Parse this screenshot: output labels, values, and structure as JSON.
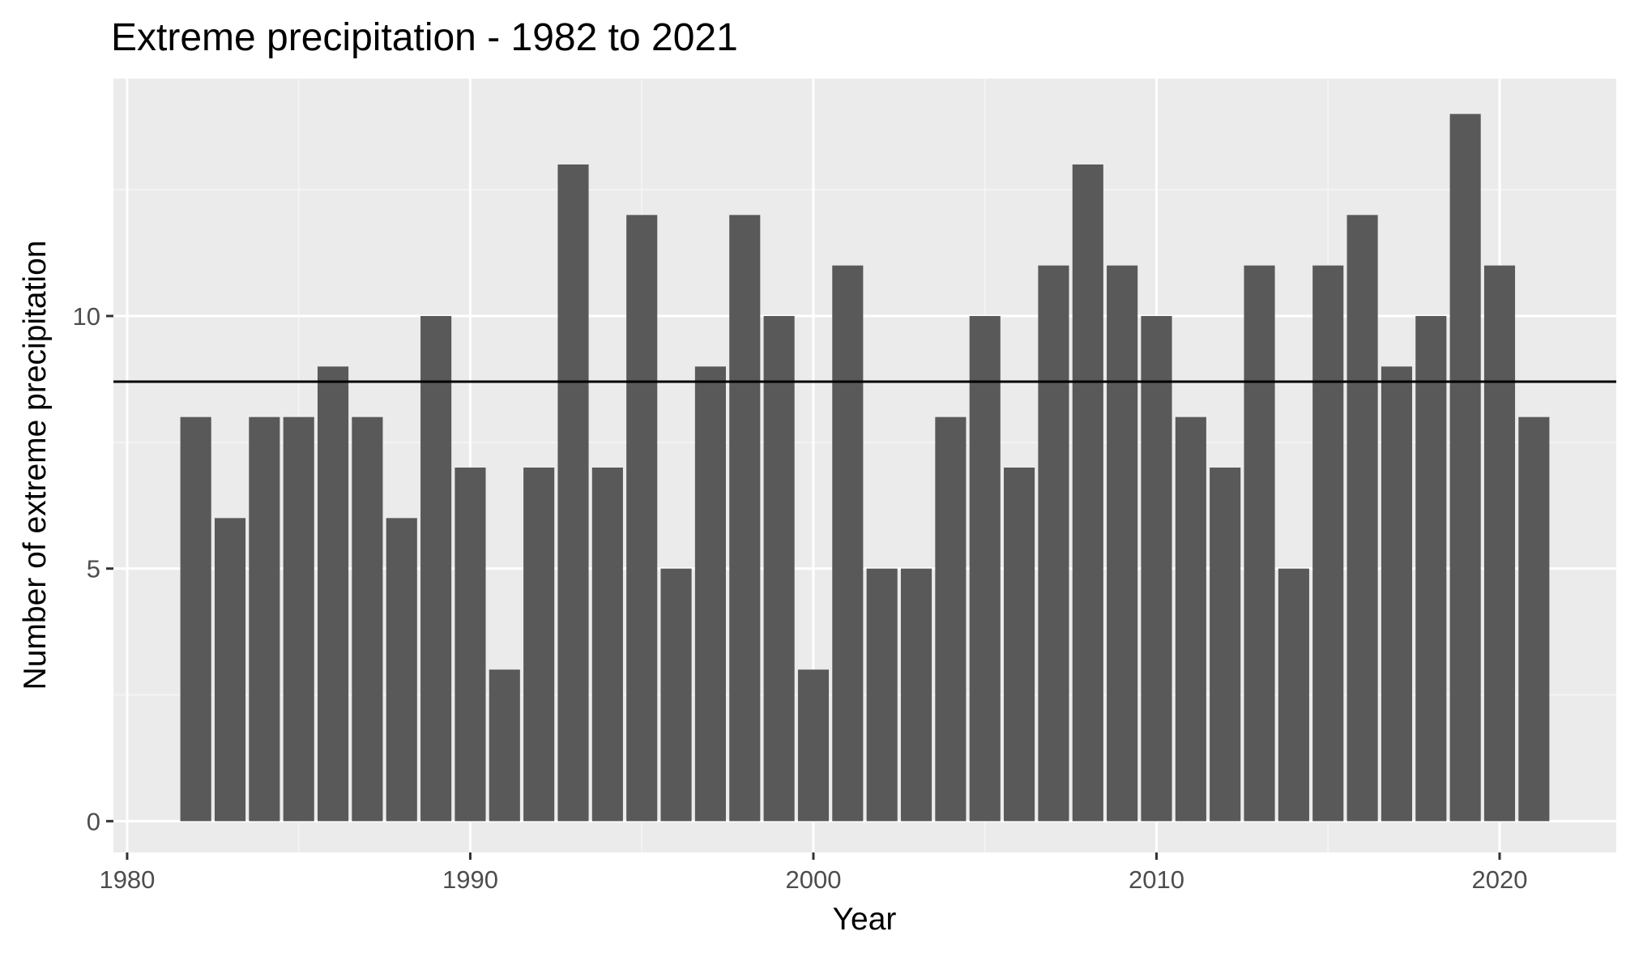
{
  "chart_data": {
    "type": "bar",
    "title": "Extreme precipitation - 1982 to 2021",
    "xlabel": "Year",
    "ylabel": "Number of extreme precipitation",
    "x": [
      1982,
      1983,
      1984,
      1985,
      1986,
      1987,
      1988,
      1989,
      1990,
      1991,
      1992,
      1993,
      1994,
      1995,
      1996,
      1997,
      1998,
      1999,
      2000,
      2001,
      2002,
      2003,
      2004,
      2005,
      2006,
      2007,
      2008,
      2009,
      2010,
      2011,
      2012,
      2013,
      2014,
      2015,
      2016,
      2017,
      2018,
      2019,
      2020,
      2021
    ],
    "values": [
      8,
      6,
      8,
      8,
      9,
      8,
      6,
      10,
      7,
      3,
      7,
      13,
      7,
      12,
      5,
      9,
      12,
      10,
      3,
      11,
      5,
      5,
      8,
      10,
      7,
      11,
      13,
      11,
      10,
      8,
      7,
      11,
      5,
      11,
      12,
      9,
      10,
      14,
      11,
      8
    ],
    "reference_line": {
      "y": 8.7,
      "color": "#000000"
    },
    "xlim": [
      1979.6,
      2023.4
    ],
    "ylim": [
      -0.62,
      14.7
    ],
    "x_ticks": [
      1980,
      1990,
      2000,
      2010,
      2020
    ],
    "y_ticks": [
      0,
      5,
      10
    ],
    "grid": true,
    "legend": "none",
    "colors": {
      "bar": "#595959",
      "panel": "#ebebeb",
      "grid_major": "#ffffff",
      "grid_minor": "#f5f5f5"
    }
  }
}
